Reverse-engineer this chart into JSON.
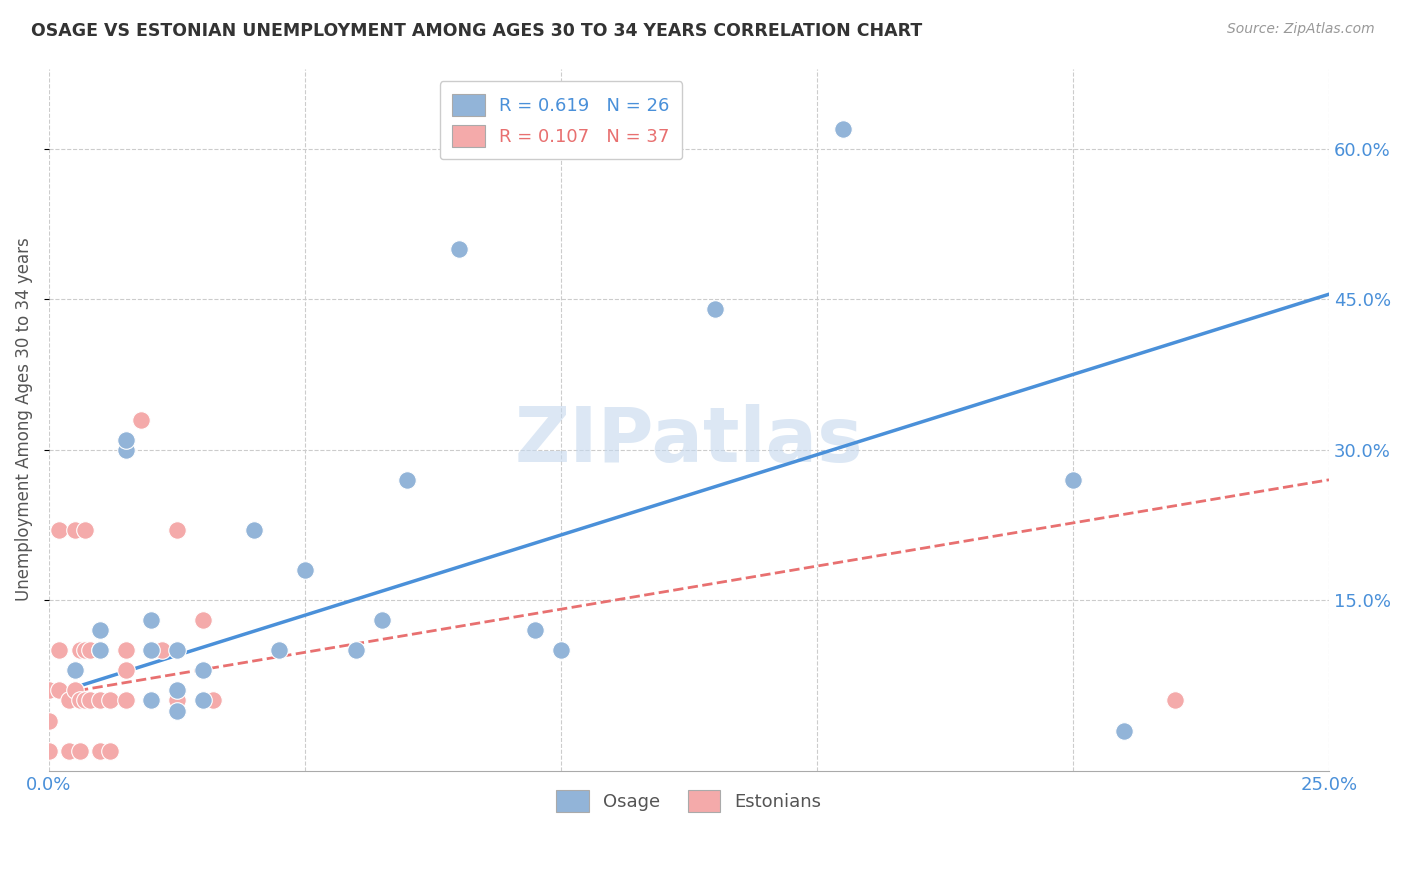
{
  "title": "OSAGE VS ESTONIAN UNEMPLOYMENT AMONG AGES 30 TO 34 YEARS CORRELATION CHART",
  "source": "Source: ZipAtlas.com",
  "ylabel": "Unemployment Among Ages 30 to 34 years",
  "xlim": [
    0.0,
    0.25
  ],
  "ylim": [
    -0.02,
    0.68
  ],
  "xticks": [
    0.0,
    0.05,
    0.1,
    0.15,
    0.2,
    0.25
  ],
  "yticks": [
    0.15,
    0.3,
    0.45,
    0.6
  ],
  "osage_R": 0.619,
  "osage_N": 26,
  "estonian_R": 0.107,
  "estonian_N": 37,
  "osage_color": "#92B4D8",
  "estonian_color": "#F4AAAA",
  "trend_osage_color": "#4A90D9",
  "trend_estonian_color": "#E87070",
  "watermark_color": "#C5D8EE",
  "osage_x": [
    0.005,
    0.01,
    0.01,
    0.015,
    0.015,
    0.02,
    0.02,
    0.02,
    0.025,
    0.025,
    0.025,
    0.03,
    0.03,
    0.04,
    0.045,
    0.05,
    0.06,
    0.065,
    0.07,
    0.08,
    0.095,
    0.1,
    0.13,
    0.155,
    0.2,
    0.21
  ],
  "osage_y": [
    0.08,
    0.1,
    0.12,
    0.3,
    0.31,
    0.05,
    0.1,
    0.13,
    0.04,
    0.06,
    0.1,
    0.05,
    0.08,
    0.22,
    0.1,
    0.18,
    0.1,
    0.13,
    0.27,
    0.5,
    0.12,
    0.1,
    0.44,
    0.62,
    0.27,
    0.02
  ],
  "estonian_x": [
    0.0,
    0.0,
    0.0,
    0.0,
    0.002,
    0.002,
    0.002,
    0.004,
    0.004,
    0.005,
    0.005,
    0.005,
    0.006,
    0.006,
    0.006,
    0.007,
    0.007,
    0.007,
    0.008,
    0.008,
    0.01,
    0.01,
    0.01,
    0.012,
    0.012,
    0.015,
    0.015,
    0.015,
    0.018,
    0.02,
    0.022,
    0.025,
    0.025,
    0.03,
    0.032,
    0.2,
    0.22
  ],
  "estonian_y": [
    0.0,
    0.0,
    0.03,
    0.06,
    0.06,
    0.1,
    0.22,
    0.0,
    0.05,
    0.06,
    0.08,
    0.22,
    0.0,
    0.05,
    0.1,
    0.05,
    0.1,
    0.22,
    0.05,
    0.1,
    0.0,
    0.05,
    0.1,
    0.0,
    0.05,
    0.05,
    0.08,
    0.1,
    0.33,
    0.05,
    0.1,
    0.22,
    0.05,
    0.13,
    0.05,
    0.27,
    0.05
  ],
  "trend_osage_x0": 0.0,
  "trend_osage_y0": 0.055,
  "trend_osage_x1": 0.25,
  "trend_osage_y1": 0.455,
  "trend_estonian_x0": 0.0,
  "trend_estonian_y0": 0.055,
  "trend_estonian_x1": 0.25,
  "trend_estonian_y1": 0.27
}
